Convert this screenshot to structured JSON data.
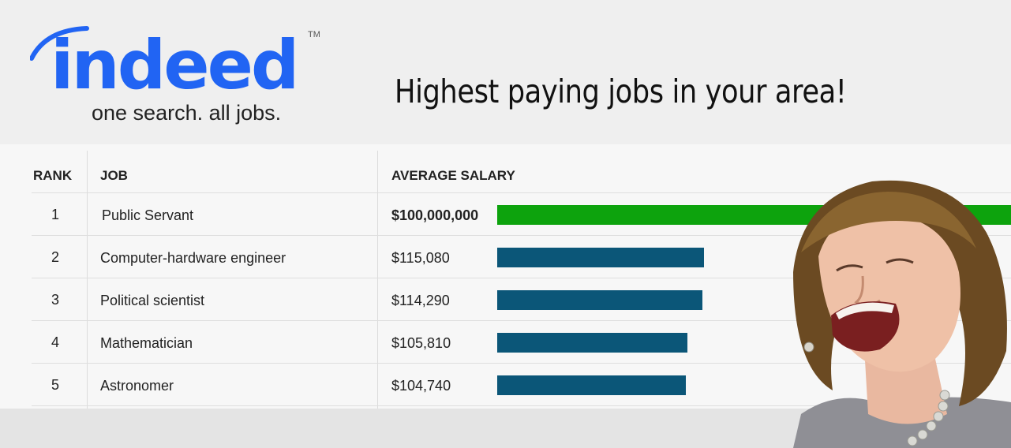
{
  "logo": {
    "word": "indeed",
    "tm": "TM",
    "tagline": "one search. all jobs."
  },
  "headline": "Highest paying jobs in your area!",
  "table": {
    "headers": {
      "rank": "RANK",
      "job": "JOB",
      "salary": "AVERAGE SALARY"
    },
    "rows": [
      {
        "rank": "1",
        "job": "Public Servant",
        "salary": "$100,000,000",
        "bar_fraction": 1.0,
        "bar_color": "#0da30d"
      },
      {
        "rank": "2",
        "job": "Computer-hardware engineer",
        "salary": "$115,080",
        "bar_fraction": 0.4028,
        "bar_color": "#0b5678"
      },
      {
        "rank": "3",
        "job": "Political scientist",
        "salary": "$114,290",
        "bar_fraction": 0.3999,
        "bar_color": "#0b5678"
      },
      {
        "rank": "4",
        "job": "Mathematician",
        "salary": "$105,810",
        "bar_fraction": 0.3701,
        "bar_color": "#0b5678"
      },
      {
        "rank": "5",
        "job": "Astronomer",
        "salary": "$104,740",
        "bar_fraction": 0.3665,
        "bar_color": "#0b5678"
      }
    ]
  },
  "colors": {
    "brand": "#2164f3",
    "highlight_bar": "#0da30d",
    "bar": "#0b5678"
  },
  "photo": {
    "subject": "laughing-woman"
  }
}
